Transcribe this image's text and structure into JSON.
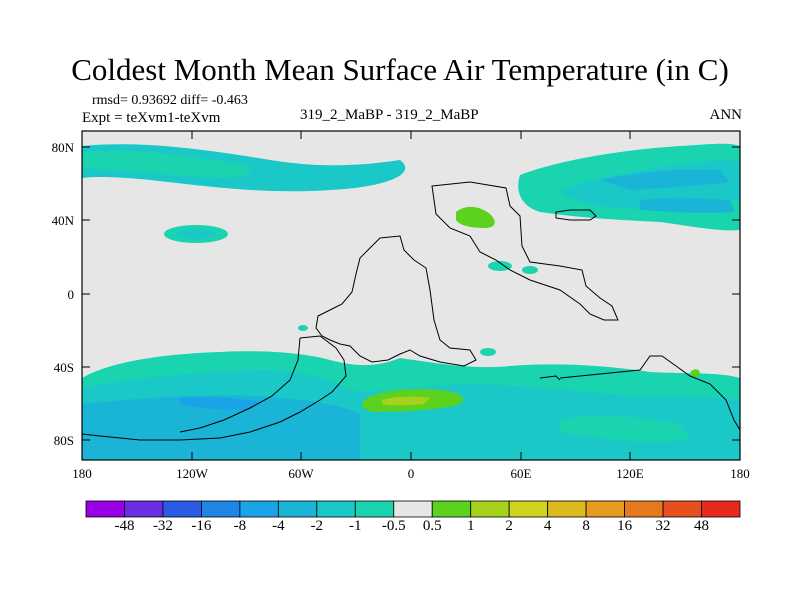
{
  "title": "Coldest Month Mean Surface Air Temperature (in C)",
  "stats": "rmsd= 0.93692 diff= -0.463",
  "experiment": "Expt = teXvm1-teXvm",
  "case": "319_2_MaBP - 319_2_MaBP",
  "season": "ANN",
  "map": {
    "lat_ticks": [
      "80N",
      "40N",
      "0",
      "40S",
      "80S"
    ],
    "lon_ticks": [
      "180",
      "120W",
      "60W",
      "0",
      "60E",
      "120E",
      "180"
    ],
    "background_color": "#e6e6e6"
  },
  "colorbar": {
    "colors": [
      "#9a00e6",
      "#6a2de0",
      "#2a5ce6",
      "#1f86e6",
      "#1aa3e6",
      "#1ab4d6",
      "#1ac8c8",
      "#1ad4b0",
      "#e6e6e6",
      "#5cd21e",
      "#a6d21e",
      "#cfd41e",
      "#dcb91e",
      "#e69a1e",
      "#e6781e",
      "#e6501e",
      "#e62a1e"
    ],
    "labels": [
      "-48",
      "-32",
      "-16",
      "-8",
      "-4",
      "-2",
      "-1",
      "-0.5",
      "0.5",
      "1",
      "2",
      "4",
      "8",
      "16",
      "32",
      "48"
    ]
  }
}
